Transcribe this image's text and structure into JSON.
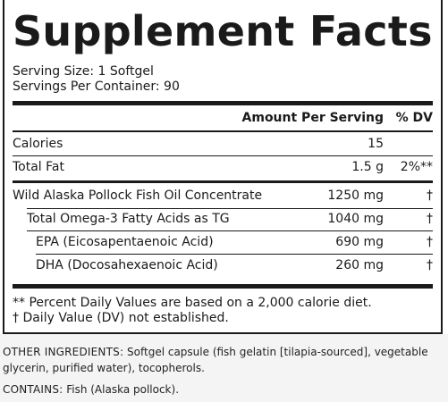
{
  "title": "Supplement Facts",
  "serving_size": "Serving Size: 1 Softgel",
  "servings_per_container": "Servings Per Container: 90",
  "header": {
    "amount": "Amount Per Serving",
    "dv": "% DV"
  },
  "rows": [
    {
      "name": "Calories",
      "amount": "15",
      "dv": ""
    },
    {
      "name": "Total Fat",
      "amount": "1.5 g",
      "dv": "2%**"
    },
    {
      "name": "Wild Alaska Pollock Fish Oil Concentrate",
      "amount": "1250 mg",
      "dv": "†"
    },
    {
      "name": "Total Omega-3 Fatty Acids as TG",
      "amount": "1040 mg",
      "dv": "†"
    },
    {
      "name": "EPA (Eicosapentaenoic Acid)",
      "amount": "690 mg",
      "dv": "†"
    },
    {
      "name": "DHA (Docosahexaenoic Acid)",
      "amount": "260 mg",
      "dv": "†"
    }
  ],
  "footnotes": [
    "** Percent Daily Values are based on a 2,000 calorie diet.",
    "† Daily Value (DV) not established."
  ],
  "other_ingredients": {
    "label": "OTHER INGREDIENTS:",
    "line1": "Softgel capsule (fish gelatin [tilapia-sourced], vegetable",
    "line2": "glycerin, purified water), tocopherols."
  },
  "contains": {
    "label": "CONTAINS:",
    "text": "Fish (Alaska pollock)."
  }
}
